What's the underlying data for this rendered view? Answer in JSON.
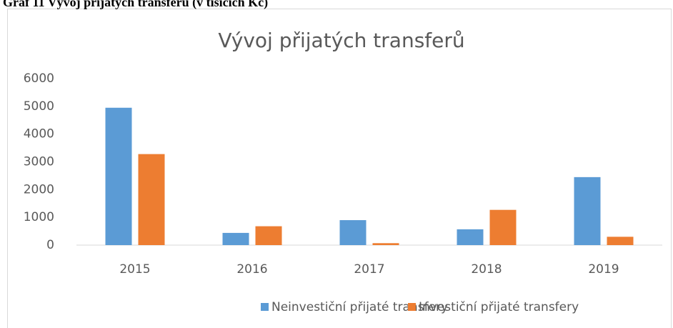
{
  "caption": "Graf 11 Vývoj přijatých transferů (v tisících Kč)",
  "chart_data": {
    "type": "bar",
    "title": "Vývoj přijatých transferů",
    "categories": [
      "2015",
      "2016",
      "2017",
      "2018",
      "2019"
    ],
    "series": [
      {
        "name": "Neinvestiční přijaté transfery",
        "color": "#5b9bd5",
        "values": [
          4950,
          440,
          900,
          570,
          2450
        ]
      },
      {
        "name": "Investiční přijaté transfery",
        "color": "#ed7d31",
        "values": [
          3280,
          680,
          70,
          1270,
          300
        ]
      }
    ],
    "ylim": [
      0,
      6000
    ],
    "yticks": [
      0,
      1000,
      2000,
      3000,
      4000,
      5000,
      6000
    ],
    "grid": false,
    "legend": "bottom"
  }
}
